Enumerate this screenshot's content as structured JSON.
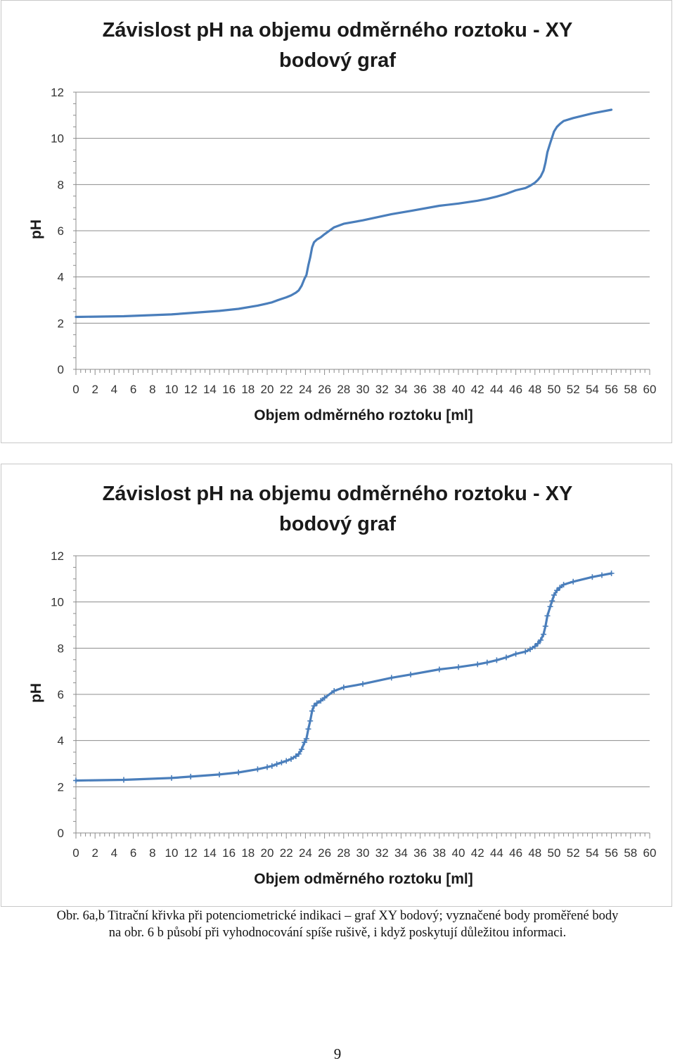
{
  "chart_data": [
    {
      "type": "line",
      "markers": false,
      "title": "Závislost pH na objemu odměrného roztoku -  XY bodový graf",
      "title_lines": [
        "Závislost pH na objemu odměrného roztoku -  XY",
        "bodový graf"
      ],
      "xlabel": "Objem odměrného roztoku [ml]",
      "ylabel": "pH",
      "xlim": [
        0,
        60
      ],
      "ylim": [
        0,
        12
      ],
      "xticks": [
        0,
        2,
        4,
        6,
        8,
        10,
        12,
        14,
        16,
        18,
        20,
        22,
        24,
        26,
        28,
        30,
        32,
        34,
        36,
        38,
        40,
        42,
        44,
        46,
        48,
        50,
        52,
        54,
        56,
        58,
        60
      ],
      "yticks": [
        0,
        2,
        4,
        6,
        8,
        10,
        12
      ],
      "grid": "horizontal",
      "color": "#4a7ebb",
      "series": [
        {
          "x": [
            0,
            5,
            10,
            12,
            15,
            17,
            19,
            20,
            20.5,
            21,
            21.5,
            22,
            22.5,
            23,
            23.3,
            23.6,
            23.9,
            24.1,
            24.3,
            24.5,
            24.7,
            24.9,
            25.2,
            25.6,
            26,
            27,
            28,
            30,
            33,
            35,
            38,
            40,
            42,
            43,
            44,
            45,
            46,
            47,
            47.5,
            48,
            48.3,
            48.6,
            48.9,
            49.1,
            49.3,
            49.6,
            49.8,
            50,
            50.3,
            50.6,
            51,
            52,
            54,
            55,
            56
          ],
          "y": [
            2.27,
            2.3,
            2.38,
            2.44,
            2.53,
            2.62,
            2.76,
            2.85,
            2.9,
            2.98,
            3.05,
            3.12,
            3.2,
            3.32,
            3.42,
            3.62,
            3.92,
            4.08,
            4.5,
            4.85,
            5.28,
            5.5,
            5.62,
            5.72,
            5.85,
            6.15,
            6.3,
            6.45,
            6.72,
            6.86,
            7.08,
            7.18,
            7.3,
            7.38,
            7.48,
            7.6,
            7.75,
            7.85,
            7.95,
            8.08,
            8.2,
            8.35,
            8.6,
            8.95,
            9.4,
            9.8,
            10.05,
            10.3,
            10.5,
            10.62,
            10.75,
            10.88,
            11.08,
            11.16,
            11.24
          ]
        }
      ]
    },
    {
      "type": "scatter",
      "markers": true,
      "title": "Závislost pH na objemu odměrného roztoku -  XY bodový graf",
      "title_lines": [
        "Závislost pH na objemu odměrného roztoku -  XY",
        "bodový graf"
      ],
      "xlabel": "Objem odměrného roztoku [ml]",
      "ylabel": "pH",
      "xlim": [
        0,
        60
      ],
      "ylim": [
        0,
        12
      ],
      "xticks": [
        0,
        2,
        4,
        6,
        8,
        10,
        12,
        14,
        16,
        18,
        20,
        22,
        24,
        26,
        28,
        30,
        32,
        34,
        36,
        38,
        40,
        42,
        44,
        46,
        48,
        50,
        52,
        54,
        56,
        58,
        60
      ],
      "yticks": [
        0,
        2,
        4,
        6,
        8,
        10,
        12
      ],
      "grid": "horizontal",
      "color": "#4a7ebb",
      "series": [
        {
          "x": [
            0,
            5,
            10,
            12,
            15,
            17,
            19,
            20,
            20.5,
            21,
            21.5,
            22,
            22.5,
            23,
            23.3,
            23.6,
            23.9,
            24.1,
            24.3,
            24.5,
            24.7,
            24.9,
            25.2,
            25.6,
            26,
            27,
            28,
            30,
            33,
            35,
            38,
            40,
            42,
            43,
            44,
            45,
            46,
            47,
            47.5,
            48,
            48.3,
            48.6,
            48.9,
            49.1,
            49.3,
            49.6,
            49.8,
            50,
            50.3,
            50.6,
            51,
            52,
            54,
            55,
            56
          ],
          "y": [
            2.27,
            2.3,
            2.38,
            2.44,
            2.53,
            2.62,
            2.76,
            2.85,
            2.9,
            2.98,
            3.05,
            3.12,
            3.2,
            3.32,
            3.42,
            3.62,
            3.92,
            4.08,
            4.5,
            4.85,
            5.28,
            5.5,
            5.62,
            5.72,
            5.85,
            6.15,
            6.3,
            6.45,
            6.72,
            6.86,
            7.08,
            7.18,
            7.3,
            7.38,
            7.48,
            7.6,
            7.75,
            7.85,
            7.95,
            8.08,
            8.2,
            8.35,
            8.6,
            8.95,
            9.4,
            9.8,
            10.05,
            10.3,
            10.5,
            10.62,
            10.75,
            10.88,
            11.08,
            11.16,
            11.24
          ]
        }
      ]
    }
  ],
  "caption": {
    "line1": "Obr. 6a,b Titrační křivka při potenciometrické indikaci – graf XY bodový; vyznačené body proměřené body",
    "line2": "na obr. 6 b působí při vyhodnocování spíše rušivě, i když poskytují důležitou informaci."
  },
  "page_number": "9"
}
